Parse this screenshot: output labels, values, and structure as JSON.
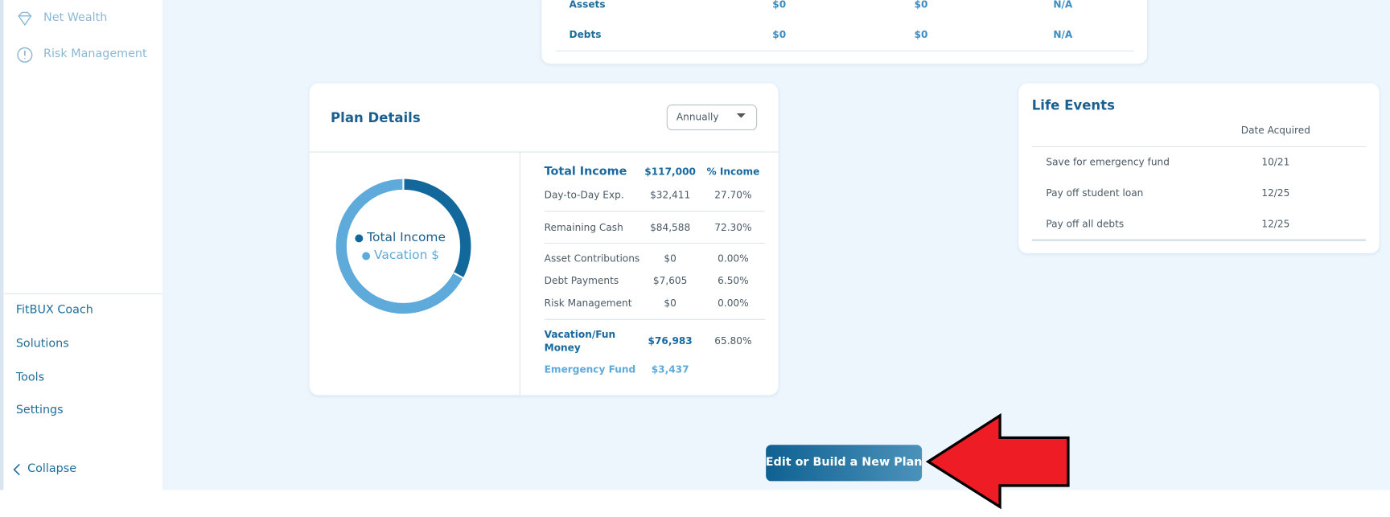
{
  "sidebar": {
    "items": [
      "Net Wealth",
      "Risk Management"
    ],
    "bottom_items": [
      "FitBUX Coach",
      "Solutions",
      "Tools",
      "Settings"
    ],
    "collapse": "Collapse"
  },
  "summary": {
    "rows": [
      [
        "Assets",
        "$0",
        "$0",
        "N/A"
      ],
      [
        "Debts",
        "$0",
        "$0",
        "N/A"
      ]
    ]
  },
  "plan_details": {
    "title": "Plan Details",
    "dropdown": "Annually",
    "legend": [
      "Total Income",
      "Vacation $"
    ],
    "header": [
      "Total Income",
      "$117,000",
      "% Income"
    ],
    "rows": [
      [
        "Day-to-Day Exp.",
        "$32,411",
        "27.70%"
      ],
      [
        "Remaining Cash",
        "$84,588",
        "72.30%"
      ],
      [
        "Asset Contributions",
        "$0",
        "0.00%"
      ],
      [
        "Debt Payments",
        "$7,605",
        "6.50%"
      ],
      [
        "Risk Management",
        "$0",
        "0.00%"
      ],
      [
        "Vacation/Fun Money",
        "$76,983",
        "65.80%"
      ],
      [
        "Emergency Fund",
        "$3,437"
      ]
    ]
  },
  "life_events": {
    "title": "Life Events",
    "header": "Date Acquired",
    "rows": [
      [
        "Save for emergency fund",
        "10/21"
      ],
      [
        "Pay off student loan",
        "12/25"
      ],
      [
        "Pay off all debts",
        "12/25"
      ]
    ]
  },
  "button": "Edit or Build a New Plan"
}
